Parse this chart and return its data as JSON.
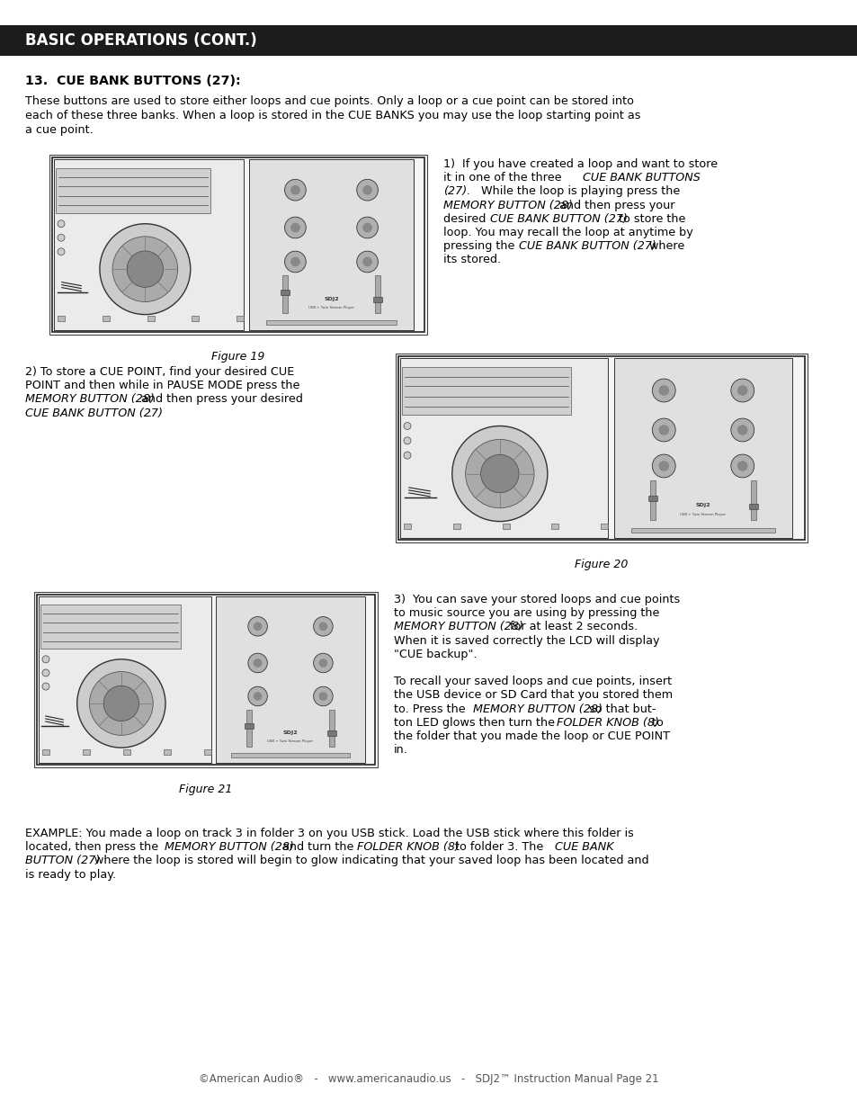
{
  "bg_color": "#ffffff",
  "header_bg": "#1c1c1c",
  "header_text": "BASIC OPERATIONS (CONT.)",
  "header_text_color": "#ffffff",
  "header_font_size": 12,
  "section_title": "13.  CUE BANK BUTTONS (27):",
  "para1_line1": "These buttons are used to store either loops and cue points. Only a loop or a cue point can be stored into",
  "para1_line2": "each of these three banks. When a loop is stored in the CUE BANKS you may use the loop starting point as",
  "para1_line3": "a cue point.",
  "caption_fig19": "Figure 19",
  "caption_fig20": "Figure 20",
  "caption_fig21": "Figure 21",
  "footer_text": "©American Audio®   -   www.americanaudio.us   -   SDJ2™ Instruction Manual Page 21",
  "font_size_body": 9.2,
  "font_size_section": 10.2,
  "font_size_caption": 9.0,
  "font_size_footer": 8.5,
  "lm": 38,
  "rm": 916
}
